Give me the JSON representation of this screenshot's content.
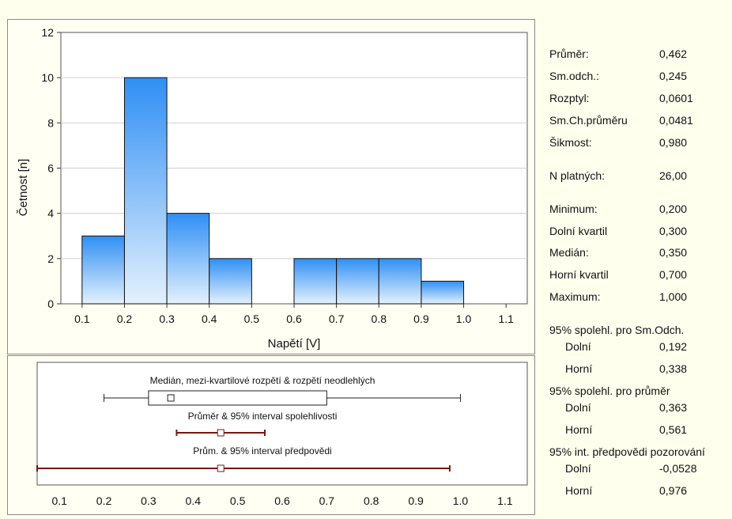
{
  "colors": {
    "background": "#ffffee",
    "bar_top": "#2f8ff4",
    "bar_bottom": "#e4f1fd",
    "bar_stroke": "#111111",
    "interval": "#7a1515"
  },
  "chart_data": [
    {
      "type": "bar",
      "xlabel": "Napětí [V]",
      "ylabel": "Četnost [n]",
      "bins": [
        {
          "x0": 0.1,
          "x1": 0.2,
          "count": 3
        },
        {
          "x0": 0.2,
          "x1": 0.3,
          "count": 10
        },
        {
          "x0": 0.3,
          "x1": 0.4,
          "count": 4
        },
        {
          "x0": 0.4,
          "x1": 0.5,
          "count": 2
        },
        {
          "x0": 0.5,
          "x1": 0.6,
          "count": 0
        },
        {
          "x0": 0.6,
          "x1": 0.7,
          "count": 2
        },
        {
          "x0": 0.7,
          "x1": 0.8,
          "count": 2
        },
        {
          "x0": 0.8,
          "x1": 0.9,
          "count": 2
        },
        {
          "x0": 0.9,
          "x1": 1.0,
          "count": 1
        }
      ],
      "xlim": [
        0.05,
        1.15
      ],
      "ylim": [
        0,
        12
      ],
      "x_ticks": [
        "0.1",
        "0.2",
        "0.3",
        "0.4",
        "0.5",
        "0.6",
        "0.7",
        "0.8",
        "0.9",
        "1.0",
        "1.1"
      ],
      "y_ticks": [
        "0",
        "2",
        "4",
        "6",
        "8",
        "10",
        "12"
      ],
      "grid": "horizontal"
    },
    {
      "type": "box",
      "xlim": [
        0.05,
        1.15
      ],
      "x_ticks": [
        "0.1",
        "0.2",
        "0.3",
        "0.4",
        "0.5",
        "0.6",
        "0.7",
        "0.8",
        "0.9",
        "1.0",
        "1.1"
      ],
      "rows": [
        {
          "label": "Medián, mezi-kvartilové rozpětí & rozpětí neodlehlých",
          "kind": "box",
          "min": 0.2,
          "q1": 0.3,
          "center": 0.35,
          "q3": 0.7,
          "max": 1.0
        },
        {
          "label": "Průměr & 95% interval spolehlivosti",
          "kind": "interval",
          "low": 0.363,
          "center": 0.462,
          "high": 0.561
        },
        {
          "label": "Prům. & 95% interval předpovědi",
          "kind": "interval",
          "low": -0.0528,
          "center": 0.462,
          "high": 0.976
        }
      ]
    }
  ],
  "stats": [
    {
      "label": "Průměr:",
      "value": "0,462"
    },
    {
      "label": "Sm.odch.:",
      "value": "0,245"
    },
    {
      "label": "Rozptyl:",
      "value": "0,0601"
    },
    {
      "label": "Sm.Ch.průměru",
      "value": "0,0481"
    },
    {
      "label": "Šikmost:",
      "value": "0,980"
    },
    {
      "label": "N platných:",
      "value": "26,00"
    },
    {
      "label": "Minimum:",
      "value": "0,200"
    },
    {
      "label": "Dolní kvartil",
      "value": "0,300"
    },
    {
      "label": "Medián:",
      "value": "0,350"
    },
    {
      "label": "Horní kvartil",
      "value": "0,700"
    },
    {
      "label": "Maximum:",
      "value": "1,000"
    },
    {
      "label": "95% spolehl. pro Sm.Odch.",
      "value": ""
    },
    {
      "label": "Dolní",
      "value": "0,192"
    },
    {
      "label": "Horní",
      "value": "0,338"
    },
    {
      "label": "95% spolehl. pro průměr",
      "value": ""
    },
    {
      "label": "Dolní",
      "value": "0,363"
    },
    {
      "label": "Horní",
      "value": "0,561"
    },
    {
      "label": "95% int. předpovědi pozorování",
      "value": ""
    },
    {
      "label": "Dolní",
      "value": "-0,0528"
    },
    {
      "label": "Horní",
      "value": "0,976"
    }
  ]
}
